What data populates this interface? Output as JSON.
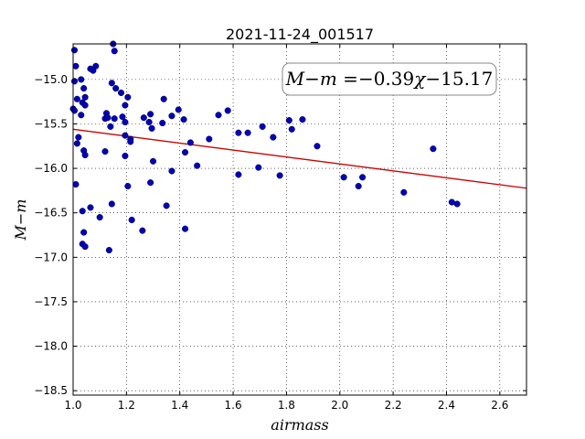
{
  "chart_data": {
    "type": "scatter",
    "title": "2021-11-24_001517",
    "xlabel": "airmass",
    "ylabel": "M−m",
    "xlim": [
      1.0,
      2.7
    ],
    "ylim": [
      -18.55,
      -14.6
    ],
    "x_ticks": [
      1.0,
      1.2,
      1.4,
      1.6,
      1.8,
      2.0,
      2.2,
      2.4,
      2.6
    ],
    "x_tick_labels": [
      "1.0",
      "1.2",
      "1.4",
      "1.6",
      "1.8",
      "2.0",
      "2.2",
      "2.4",
      "2.6"
    ],
    "y_ticks": [
      -15.0,
      -15.5,
      -16.0,
      -16.5,
      -17.0,
      -17.5,
      -18.0,
      -18.5
    ],
    "y_tick_labels": [
      "−15.0",
      "−15.5",
      "−16.0",
      "−16.5",
      "−17.0",
      "−17.5",
      "−18.0",
      "−18.5"
    ],
    "grid": true,
    "annotation": {
      "prefix": "M−m",
      "equals": " =",
      "slope": "−0.39",
      "variable": "χ",
      "intercept": "−15.17",
      "placement": "top-right"
    },
    "fit_line": {
      "slope": -0.39,
      "intercept": -15.17,
      "color": "#cc0000"
    },
    "marker_color": "#0000bb",
    "points": [
      {
        "x": 1.005,
        "y": -14.67
      },
      {
        "x": 1.01,
        "y": -14.85
      },
      {
        "x": 1.005,
        "y": -15.02
      },
      {
        "x": 1.03,
        "y": -15.0
      },
      {
        "x": 1.04,
        "y": -15.1
      },
      {
        "x": 1.015,
        "y": -15.22
      },
      {
        "x": 1.035,
        "y": -15.26
      },
      {
        "x": 1.045,
        "y": -15.2
      },
      {
        "x": 1.045,
        "y": -15.29
      },
      {
        "x": 1.0,
        "y": -15.33
      },
      {
        "x": 1.005,
        "y": -15.35
      },
      {
        "x": 1.03,
        "y": -15.4
      },
      {
        "x": 1.065,
        "y": -14.88
      },
      {
        "x": 1.075,
        "y": -14.9
      },
      {
        "x": 1.085,
        "y": -14.85
      },
      {
        "x": 1.15,
        "y": -14.6
      },
      {
        "x": 1.155,
        "y": -14.68
      },
      {
        "x": 1.145,
        "y": -15.04
      },
      {
        "x": 1.16,
        "y": -15.1
      },
      {
        "x": 1.18,
        "y": -15.15
      },
      {
        "x": 1.205,
        "y": -15.2
      },
      {
        "x": 1.195,
        "y": -15.29
      },
      {
        "x": 1.125,
        "y": -15.38
      },
      {
        "x": 1.12,
        "y": -15.44
      },
      {
        "x": 1.13,
        "y": -15.43
      },
      {
        "x": 1.155,
        "y": -15.44
      },
      {
        "x": 1.14,
        "y": -15.53
      },
      {
        "x": 1.185,
        "y": -15.42
      },
      {
        "x": 1.195,
        "y": -15.48
      },
      {
        "x": 1.195,
        "y": -15.63
      },
      {
        "x": 1.215,
        "y": -15.67
      },
      {
        "x": 1.215,
        "y": -15.7
      },
      {
        "x": 1.02,
        "y": -15.65
      },
      {
        "x": 1.015,
        "y": -15.72
      },
      {
        "x": 1.04,
        "y": -15.8
      },
      {
        "x": 1.045,
        "y": -15.85
      },
      {
        "x": 1.12,
        "y": -15.81
      },
      {
        "x": 1.195,
        "y": -15.86
      },
      {
        "x": 1.01,
        "y": -16.18
      },
      {
        "x": 1.205,
        "y": -16.2
      },
      {
        "x": 1.035,
        "y": -16.48
      },
      {
        "x": 1.065,
        "y": -16.44
      },
      {
        "x": 1.1,
        "y": -16.55
      },
      {
        "x": 1.145,
        "y": -16.4
      },
      {
        "x": 1.04,
        "y": -16.72
      },
      {
        "x": 1.035,
        "y": -16.85
      },
      {
        "x": 1.045,
        "y": -16.88
      },
      {
        "x": 1.135,
        "y": -16.92
      },
      {
        "x": 1.22,
        "y": -16.58
      },
      {
        "x": 1.26,
        "y": -16.7
      },
      {
        "x": 1.265,
        "y": -15.43
      },
      {
        "x": 1.285,
        "y": -15.48
      },
      {
        "x": 1.29,
        "y": -15.39
      },
      {
        "x": 1.295,
        "y": -15.55
      },
      {
        "x": 1.335,
        "y": -15.49
      },
      {
        "x": 1.34,
        "y": -15.22
      },
      {
        "x": 1.37,
        "y": -15.41
      },
      {
        "x": 1.395,
        "y": -15.34
      },
      {
        "x": 1.415,
        "y": -15.45
      },
      {
        "x": 1.3,
        "y": -15.92
      },
      {
        "x": 1.29,
        "y": -16.16
      },
      {
        "x": 1.37,
        "y": -16.03
      },
      {
        "x": 1.35,
        "y": -16.42
      },
      {
        "x": 1.42,
        "y": -16.68
      },
      {
        "x": 1.44,
        "y": -15.71
      },
      {
        "x": 1.42,
        "y": -15.82
      },
      {
        "x": 1.465,
        "y": -15.97
      },
      {
        "x": 1.51,
        "y": -15.67
      },
      {
        "x": 1.545,
        "y": -15.4
      },
      {
        "x": 1.58,
        "y": -15.35
      },
      {
        "x": 1.62,
        "y": -15.6
      },
      {
        "x": 1.655,
        "y": -15.6
      },
      {
        "x": 1.62,
        "y": -16.07
      },
      {
        "x": 1.695,
        "y": -15.99
      },
      {
        "x": 1.71,
        "y": -15.53
      },
      {
        "x": 1.75,
        "y": -15.65
      },
      {
        "x": 1.775,
        "y": -16.08
      },
      {
        "x": 1.81,
        "y": -15.46
      },
      {
        "x": 1.82,
        "y": -15.56
      },
      {
        "x": 1.86,
        "y": -15.45
      },
      {
        "x": 1.915,
        "y": -15.75
      },
      {
        "x": 2.015,
        "y": -16.1
      },
      {
        "x": 2.07,
        "y": -16.2
      },
      {
        "x": 2.085,
        "y": -16.1
      },
      {
        "x": 2.24,
        "y": -16.27
      },
      {
        "x": 2.35,
        "y": -15.78
      },
      {
        "x": 2.42,
        "y": -16.38
      },
      {
        "x": 2.44,
        "y": -16.4
      }
    ]
  }
}
